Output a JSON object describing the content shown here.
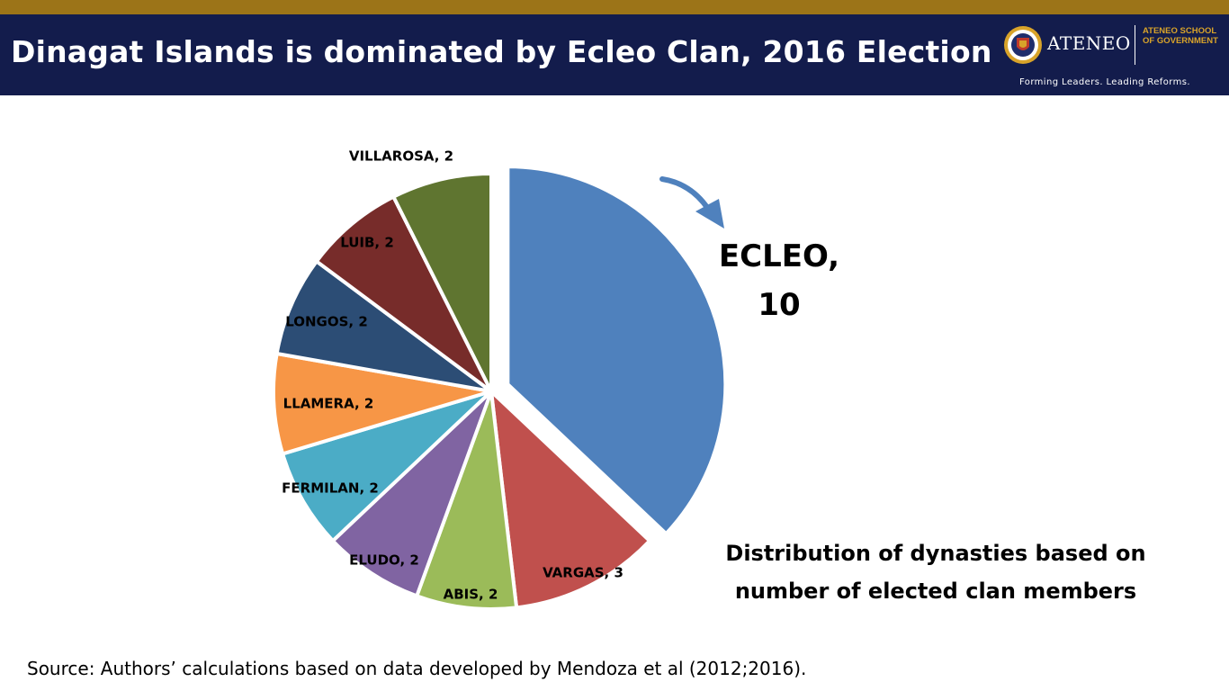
{
  "header": {
    "title": "Dinagat Islands is dominated by Ecleo Clan, 2016 Election",
    "brand_name": "ATENEO",
    "school_name": "ATENEO SCHOOL OF GOVERNMENT",
    "tagline": "Forming Leaders. Leading Reforms.",
    "logo_icon": "ateneo-seal-icon"
  },
  "colors": {
    "gold_bar": "#9c7418",
    "header_bg": "#131c4c",
    "school_text": "#d8a32a"
  },
  "chart_data": {
    "type": "pie",
    "title": "",
    "slices": [
      {
        "label": "ECLEO, 10",
        "name": "ECLEO",
        "value": 10,
        "color": "#4f81bd",
        "exploded": true
      },
      {
        "label": "VARGAS, 3",
        "name": "VARGAS",
        "value": 3,
        "color": "#c0504d"
      },
      {
        "label": "ABIS, 2",
        "name": "ABIS",
        "value": 2,
        "color": "#9bbb59"
      },
      {
        "label": "ELUDO, 2",
        "name": "ELUDO",
        "value": 2,
        "color": "#8064a2"
      },
      {
        "label": "FERMILAN, 2",
        "name": "FERMILAN",
        "value": 2,
        "color": "#4bacc6"
      },
      {
        "label": "LLAMERA, 2",
        "name": "LLAMERA",
        "value": 2,
        "color": "#f79646"
      },
      {
        "label": "LONGOS, 2",
        "name": "LONGOS",
        "value": 2,
        "color": "#2c4d75"
      },
      {
        "label": "LUIB, 2",
        "name": "LUIB",
        "value": 2,
        "color": "#772c2a"
      },
      {
        "label": "VILLAROSA, 2",
        "name": "VILLAROSA",
        "value": 2,
        "color": "#5f7530"
      }
    ],
    "highlight_label": {
      "name": "ECLEO,",
      "value": "10"
    },
    "annotation_icon": "curved-arrow-icon"
  },
  "caption": {
    "line1": "Distribution of dynasties based on",
    "line2": "number of elected clan members"
  },
  "source": "Source: Authors’ calculations based on data developed by Mendoza et al (2012;2016)."
}
